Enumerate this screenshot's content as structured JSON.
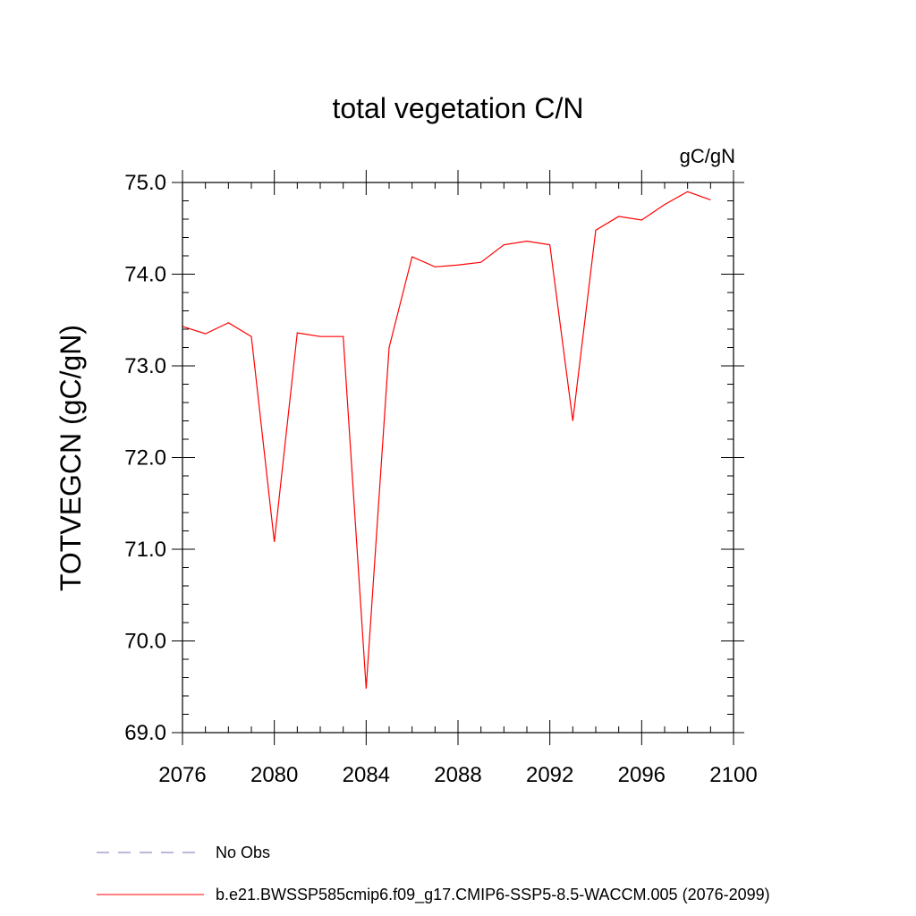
{
  "chart_data": {
    "type": "line",
    "title": "total vegetation C/N",
    "units_label": "gC/gN",
    "xlabel": "",
    "ylabel": "TOTVEGCN  (gC/gN)",
    "xlim": [
      2076,
      2100
    ],
    "ylim": [
      69.0,
      75.0
    ],
    "x_ticks": [
      2076,
      2080,
      2084,
      2088,
      2092,
      2096,
      2100
    ],
    "x_tick_labels": [
      "2076",
      "2080",
      "2084",
      "2088",
      "2092",
      "2096",
      "2100"
    ],
    "y_ticks": [
      69.0,
      70.0,
      71.0,
      72.0,
      73.0,
      74.0,
      75.0
    ],
    "y_tick_labels": [
      "69.0",
      "70.0",
      "71.0",
      "72.0",
      "73.0",
      "74.0",
      "75.0"
    ],
    "grid": false,
    "legend_position": "bottom",
    "series": [
      {
        "name": "b.e21.BWSSP585cmip6.f09_g17.CMIP6-SSP5-8.5-WACCM.005 (2076-2099)",
        "color": "#ff0000",
        "style": "solid",
        "x": [
          2076,
          2077,
          2078,
          2079,
          2080,
          2081,
          2082,
          2083,
          2084,
          2085,
          2086,
          2087,
          2088,
          2089,
          2090,
          2091,
          2092,
          2093,
          2094,
          2095,
          2096,
          2097,
          2098,
          2099
        ],
        "y": [
          73.43,
          73.35,
          73.47,
          73.32,
          71.08,
          73.36,
          73.32,
          73.32,
          69.48,
          73.2,
          74.19,
          74.08,
          74.1,
          74.13,
          74.32,
          74.36,
          74.32,
          72.4,
          74.48,
          74.63,
          74.59,
          74.76,
          74.9,
          74.81
        ]
      }
    ],
    "legend": [
      {
        "label": "No Obs",
        "color": "#7b6fb3",
        "style": "dashed"
      },
      {
        "label": "b.e21.BWSSP585cmip6.f09_g17.CMIP6-SSP5-8.5-WACCM.005 (2076-2099)",
        "color": "#ff0000",
        "style": "solid"
      }
    ]
  }
}
